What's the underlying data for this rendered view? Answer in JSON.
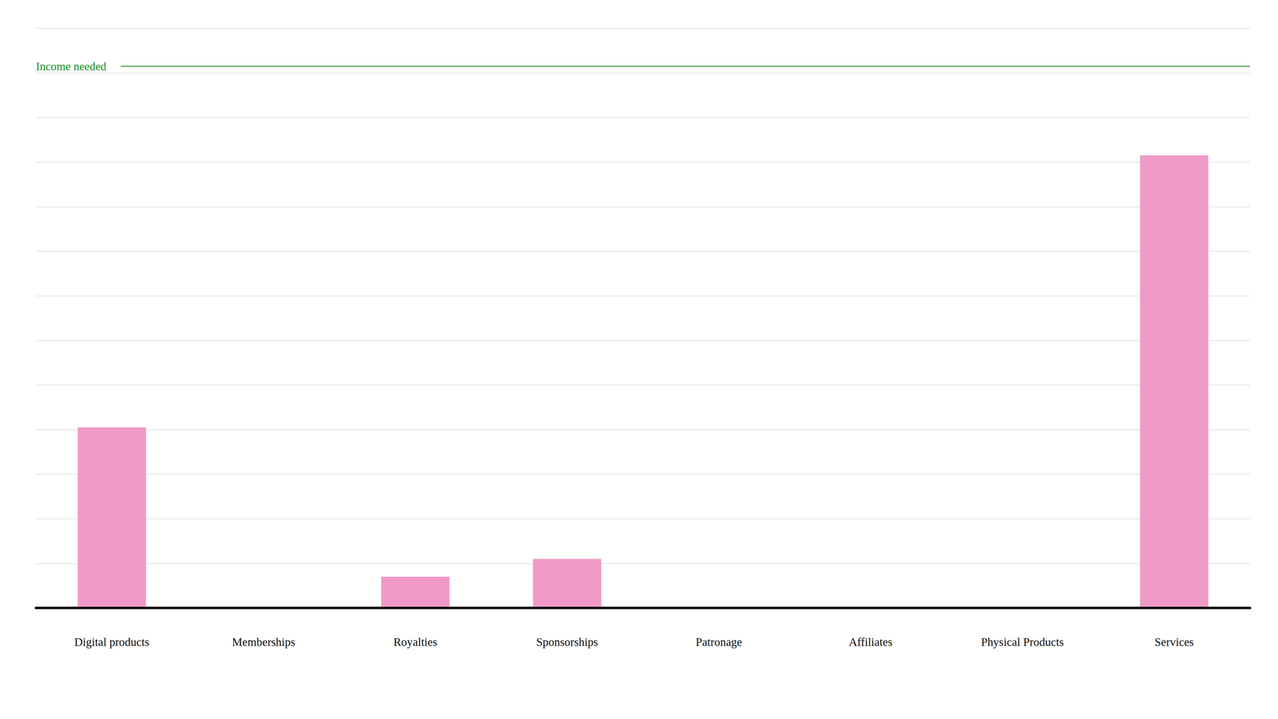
{
  "chart_data": {
    "type": "bar",
    "categories": [
      "Digital products",
      "Memberships",
      "Royalties",
      "Sponsorships",
      "Patronage",
      "Affiliates",
      "Physical Products",
      "Services"
    ],
    "values": [
      4.05,
      0,
      0.7,
      1.1,
      0,
      0,
      0,
      10.15
    ],
    "color": "#f09ac8",
    "ylim": [
      0,
      13
    ],
    "yticks": [
      0,
      1,
      2,
      3,
      4,
      5,
      6,
      7,
      8,
      9,
      10,
      11,
      12,
      13
    ],
    "grid": true,
    "tick_labels": "x",
    "reference_line": {
      "label": "Income needed",
      "value": 12.15,
      "color": "#1a8f2a"
    }
  }
}
